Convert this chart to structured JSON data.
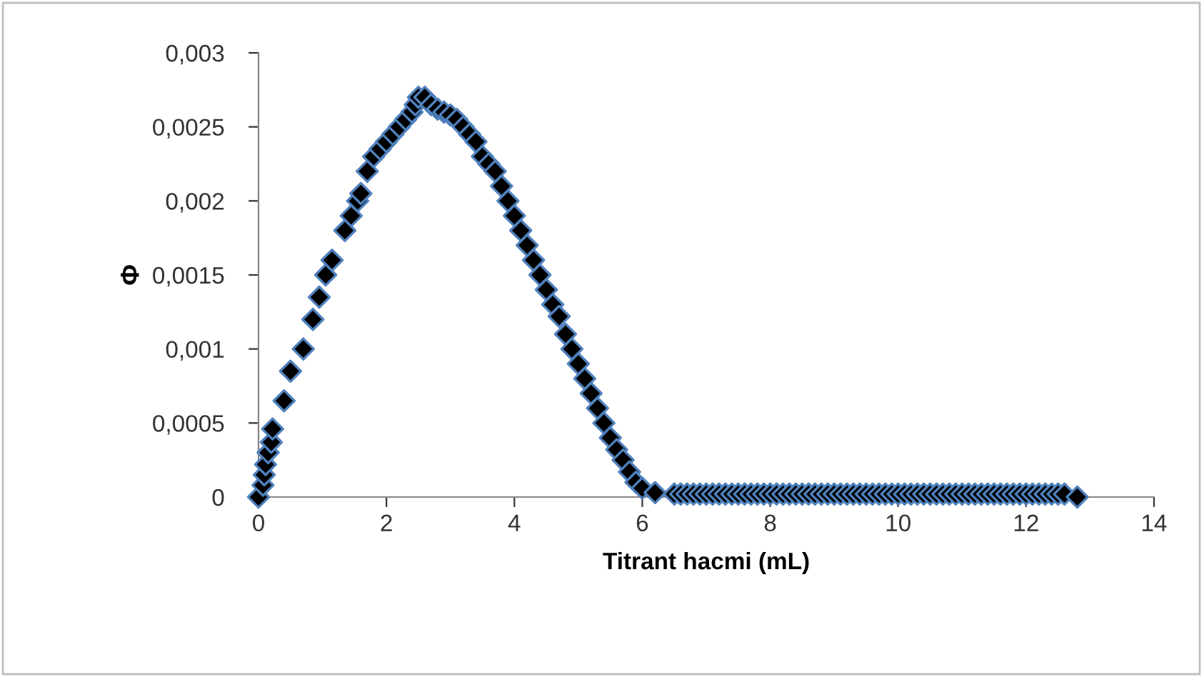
{
  "chart_data": {
    "type": "scatter",
    "xlabel": "Titrant hacmi (mL)",
    "ylabel": "Φ",
    "marker": "diamond",
    "grid": false,
    "legend": false,
    "xlim": [
      0,
      14
    ],
    "xticks": [
      0,
      2,
      4,
      6,
      8,
      10,
      12,
      14
    ],
    "ylim": [
      0,
      0.003
    ],
    "yticks": [
      {
        "value": 0,
        "label": "0"
      },
      {
        "value": 0.0005,
        "label": "0,0005"
      },
      {
        "value": 0.001,
        "label": "0,001"
      },
      {
        "value": 0.0015,
        "label": "0,0015"
      },
      {
        "value": 0.002,
        "label": "0,002"
      },
      {
        "value": 0.0025,
        "label": "0,0025"
      },
      {
        "value": 0.003,
        "label": "0,003"
      }
    ],
    "series": [
      {
        "color": "#000000",
        "x": [
          0,
          0.07,
          0.09,
          0.11,
          0.15,
          0.2,
          0.22,
          0.4,
          0.5,
          0.7,
          0.85,
          0.95,
          1.05,
          1.15,
          1.35,
          1.45,
          1.55,
          1.6,
          1.7,
          1.8,
          1.9,
          2.0,
          2.1,
          2.2,
          2.3,
          2.4,
          2.45,
          2.5,
          2.6,
          2.7,
          2.8,
          2.9,
          3.0,
          3.1,
          3.2,
          3.3,
          3.4,
          3.5,
          3.6,
          3.7,
          3.8,
          3.9,
          4.0,
          4.1,
          4.2,
          4.3,
          4.4,
          4.5,
          4.6,
          4.7,
          4.8,
          4.9,
          5.0,
          5.1,
          5.2,
          5.3,
          5.4,
          5.5,
          5.6,
          5.7,
          5.8,
          5.9,
          6.0,
          6.2,
          6.5,
          6.6,
          6.7,
          6.8,
          6.9,
          7.0,
          7.1,
          7.2,
          7.3,
          7.4,
          7.5,
          7.6,
          7.7,
          7.8,
          7.9,
          8.0,
          8.1,
          8.2,
          8.3,
          8.4,
          8.5,
          8.6,
          8.7,
          8.8,
          8.9,
          9.0,
          9.1,
          9.2,
          9.3,
          9.4,
          9.5,
          9.6,
          9.7,
          9.8,
          9.9,
          10.0,
          10.1,
          10.2,
          10.3,
          10.4,
          10.5,
          10.6,
          10.7,
          10.8,
          10.9,
          11.0,
          11.1,
          11.2,
          11.3,
          11.4,
          11.5,
          11.6,
          11.7,
          11.8,
          11.9,
          12.0,
          12.1,
          12.2,
          12.3,
          12.4,
          12.5,
          12.6,
          12.8
        ],
        "values": [
          0,
          8e-05,
          0.00015,
          0.00022,
          0.0003,
          0.00037,
          0.00046,
          0.00065,
          0.00085,
          0.001,
          0.0012,
          0.00135,
          0.0015,
          0.0016,
          0.0018,
          0.0019,
          0.002,
          0.00205,
          0.0022,
          0.0023,
          0.00235,
          0.0024,
          0.00245,
          0.0025,
          0.00255,
          0.0026,
          0.00265,
          0.0027,
          0.0027,
          0.00265,
          0.00262,
          0.0026,
          0.00258,
          0.00255,
          0.0025,
          0.00245,
          0.0024,
          0.0023,
          0.00225,
          0.0022,
          0.0021,
          0.002,
          0.0019,
          0.0018,
          0.0017,
          0.0016,
          0.0015,
          0.0014,
          0.0013,
          0.00122,
          0.0011,
          0.001,
          0.0009,
          0.0008,
          0.0007,
          0.0006,
          0.0005,
          0.0004,
          0.00032,
          0.00025,
          0.00017,
          0.0001,
          6e-05,
          3e-05,
          2e-05,
          2e-05,
          2e-05,
          2e-05,
          2e-05,
          2e-05,
          2e-05,
          2e-05,
          2e-05,
          2e-05,
          2e-05,
          2e-05,
          2e-05,
          2e-05,
          2e-05,
          2e-05,
          2e-05,
          2e-05,
          2e-05,
          2e-05,
          2e-05,
          2e-05,
          2e-05,
          2e-05,
          2e-05,
          2e-05,
          2e-05,
          2e-05,
          2e-05,
          2e-05,
          2e-05,
          2e-05,
          2e-05,
          2e-05,
          2e-05,
          2e-05,
          2e-05,
          2e-05,
          2e-05,
          2e-05,
          2e-05,
          2e-05,
          2e-05,
          2e-05,
          2e-05,
          2e-05,
          2e-05,
          2e-05,
          2e-05,
          2e-05,
          2e-05,
          2e-05,
          2e-05,
          2e-05,
          2e-05,
          2e-05,
          2e-05,
          2e-05,
          2e-05,
          2e-05,
          2e-05,
          2e-05,
          0
        ]
      }
    ]
  }
}
